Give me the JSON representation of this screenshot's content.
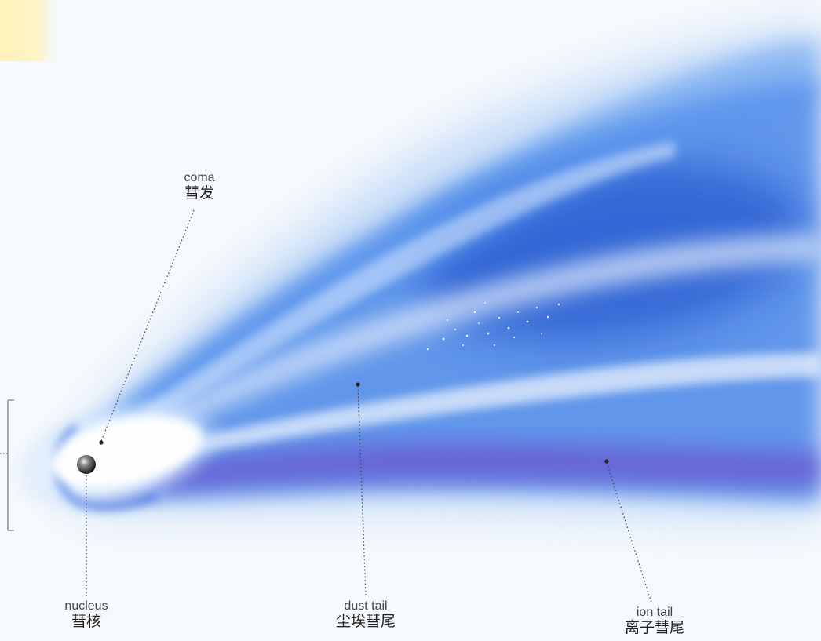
{
  "labels": {
    "coma": {
      "en": "coma",
      "zh": "彗发"
    },
    "nucleus": {
      "en": "nucleus",
      "zh": "彗核"
    },
    "dust": {
      "en": "dust tail",
      "zh": "尘埃彗尾"
    },
    "ion": {
      "en": "ion tail",
      "zh": "离子彗尾"
    }
  },
  "colors": {
    "background": "#f6f9fc",
    "tail_blue": "#2f6fe0",
    "deep_blue": "#1f4fc8",
    "ion_violet": "#6d5fd2",
    "coma_glow": "#ffffff",
    "label_text": "#222222",
    "leader_line": "#444444"
  }
}
